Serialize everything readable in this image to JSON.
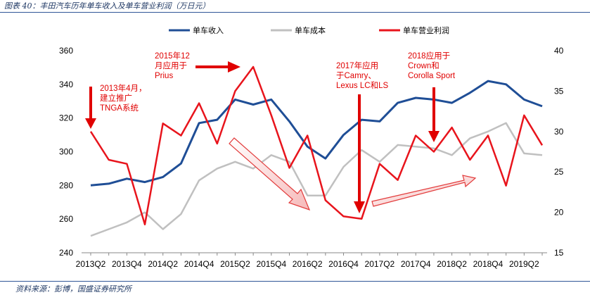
{
  "header": {
    "title": "图表 40：丰田汽车历年单车收入及单车营业利润（万日元）"
  },
  "footer": {
    "source": "资料来源：彭博，国盛证券研究所"
  },
  "colors": {
    "revenue": "#1f4e96",
    "cost": "#c0c0c0",
    "profit": "#e8141c",
    "annotation": "#e00000",
    "rule": "#2f5597"
  },
  "chart_data": {
    "type": "line",
    "x": [
      "2013Q2",
      "2013Q3",
      "2013Q4",
      "2014Q1",
      "2014Q2",
      "2014Q3",
      "2014Q4",
      "2015Q1",
      "2015Q2",
      "2015Q3",
      "2015Q4",
      "2016Q1",
      "2016Q2",
      "2016Q3",
      "2016Q4",
      "2017Q1",
      "2017Q2",
      "2017Q3",
      "2017Q4",
      "2018Q1",
      "2018Q2",
      "2018Q3",
      "2018Q4",
      "2019Q1",
      "2019Q2",
      "2019Q3"
    ],
    "x_tick_labels": [
      "2013Q2",
      "2013Q4",
      "2014Q2",
      "2014Q4",
      "2015Q2",
      "2015Q4",
      "2016Q2",
      "2016Q4",
      "2017Q2",
      "2017Q4",
      "2018Q2",
      "2018Q4",
      "2019Q2"
    ],
    "y_left": {
      "ylim": [
        240,
        360
      ],
      "ticks": [
        240,
        260,
        280,
        300,
        320,
        340,
        360
      ]
    },
    "y_right": {
      "ylim": [
        15,
        40
      ],
      "ticks": [
        15,
        20,
        25,
        30,
        35,
        40
      ]
    },
    "legend_placement": "top",
    "series": [
      {
        "name": "单车收入",
        "axis": "left",
        "values": [
          280,
          281,
          284,
          282,
          285,
          293,
          317,
          319,
          331,
          328,
          331,
          318,
          303,
          296,
          310,
          319,
          318,
          329,
          332,
          331,
          329,
          335,
          342,
          340,
          331,
          327
        ]
      },
      {
        "name": "单车成本",
        "axis": "left",
        "values": [
          250,
          254,
          258,
          264,
          254,
          263,
          283,
          290,
          294,
          290,
          298,
          294,
          274,
          274,
          291,
          301,
          294,
          304,
          303,
          302,
          298,
          308,
          312,
          317,
          299,
          298
        ]
      },
      {
        "name": "单车营业利润",
        "axis": "right",
        "values": [
          30.0,
          26.5,
          26.0,
          18.5,
          31.0,
          29.5,
          33.5,
          28.5,
          35.0,
          38.0,
          32.0,
          25.5,
          29.5,
          21.5,
          19.5,
          19.2,
          26.0,
          24.0,
          29.5,
          27.5,
          30.5,
          26.5,
          29.5,
          23.3,
          32.0,
          28.3
        ]
      }
    ],
    "annotations": [
      {
        "id": "a1",
        "lines": [
          "2013年4月，",
          "建立推广",
          "TNGA系统"
        ]
      },
      {
        "id": "a2",
        "lines": [
          "2015年12",
          "月应用于",
          "Prius"
        ]
      },
      {
        "id": "a3",
        "lines": [
          "2017年应用",
          "于Camry、",
          "Lexus LC和LS"
        ]
      },
      {
        "id": "a4",
        "lines": [
          "2018应用于",
          "Crown和",
          "Corolla Sport"
        ]
      }
    ]
  }
}
